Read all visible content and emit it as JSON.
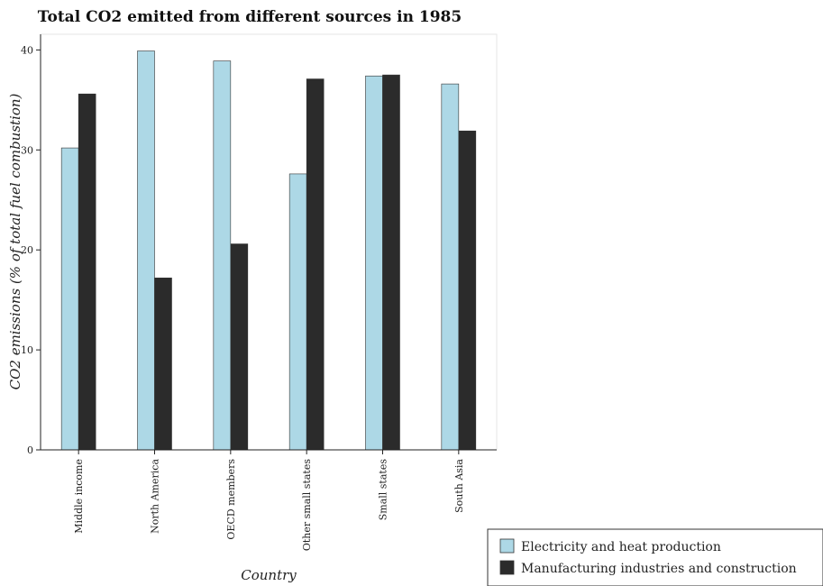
{
  "chart_data": {
    "type": "bar",
    "title": "Total CO2 emitted from different sources in 1985",
    "xlabel": "Country",
    "ylabel": "CO2 emissions (% of total fuel combustion)",
    "categories": [
      "Middle income",
      "North America",
      "OECD members",
      "Other small states",
      "Small states",
      "South Asia"
    ],
    "series": [
      {
        "name": "Electricity and heat production",
        "color": "#add8e6",
        "values": [
          30.2,
          39.9,
          38.9,
          27.6,
          37.4,
          36.6
        ]
      },
      {
        "name": "Manufacturing industries and construction",
        "color": "#2b2b2b",
        "values": [
          35.6,
          17.2,
          20.6,
          37.1,
          37.5,
          31.9
        ]
      }
    ],
    "ylim": [
      0,
      42
    ],
    "yticks": [
      0,
      10,
      20,
      30,
      40
    ],
    "grid": false,
    "legend_position": "bottom-right"
  }
}
